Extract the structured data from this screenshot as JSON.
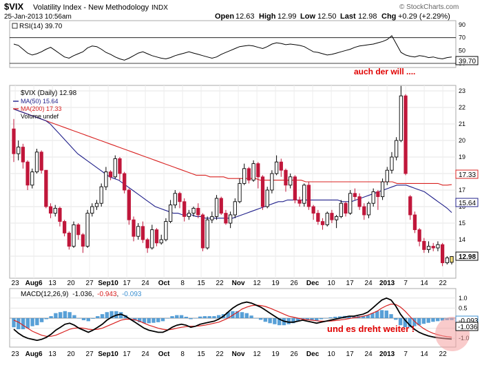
{
  "header": {
    "symbol": "$VIX",
    "name": "Volatility Index - New Methodology",
    "exchange": "INDX",
    "date": "25-Jan-2013 10:56am",
    "quote": {
      "open_label": "Open",
      "open": "12.63",
      "high_label": "High",
      "high": "12.99",
      "low_label": "Low",
      "low": "12.50",
      "last_label": "Last",
      "last": "12.98",
      "chg_label": "Chg",
      "chg": "+0.29 (+2.29%)"
    },
    "credit": "© StockCharts.com"
  },
  "x_axis_labels": [
    "23",
    "Aug6",
    "13",
    "20",
    "27",
    "Sep10",
    "17",
    "24",
    "Oct",
    "8",
    "15",
    "22",
    "Nov",
    "12",
    "19",
    "26",
    "Dec",
    "10",
    "17",
    "24",
    "2013",
    "7",
    "14",
    "22"
  ],
  "rsi_panel": {
    "legend": "RSI(14) 39.70",
    "last_badge": "39.70",
    "annotation": "auch der will ...."
  },
  "price_panel": {
    "legend": {
      "symbol": "$VIX (Daily) 12.98",
      "ma50": "MA(50) 15.64",
      "ma200": "MA(200) 17.33",
      "volume": "Volume undef"
    },
    "badges": {
      "last": "12.98",
      "ma200": "17.33",
      "ma50": "15.64"
    }
  },
  "macd_panel": {
    "legend_prefix": "MACD(12,26,9)",
    "legend_macd": "-1.036",
    "legend_signal": "-0.943",
    "legend_hist": "-0.093",
    "badges": {
      "hist": "-0.093",
      "macd": "-1.036"
    },
    "annotation": "und es dreht weiter !"
  },
  "colors": {
    "up": "#000000",
    "down": "#c0173b",
    "ma50": "#1f1f8a",
    "ma200": "#d8201f",
    "rsi": "#000000",
    "macd": "#000000",
    "signal": "#d8201f",
    "hist": "#3b8fd0",
    "annotation": "#e00000",
    "circle": "#f4a0a0"
  },
  "chart_data": [
    {
      "type": "line",
      "title": "RSI(14)",
      "ylim": [
        30,
        90
      ],
      "y_ticks": [
        30,
        50,
        70,
        90
      ],
      "reference_lines": [
        30,
        70
      ],
      "series": [
        {
          "name": "RSI(14)",
          "values": [
            60,
            58,
            52,
            46,
            43,
            45,
            48,
            52,
            55,
            50,
            45,
            40,
            38,
            42,
            45,
            48,
            54,
            57,
            56,
            52,
            47,
            44,
            40,
            37,
            35,
            38,
            42,
            46,
            48,
            45,
            42,
            40,
            38,
            37,
            39,
            42,
            44,
            46,
            48,
            46,
            44,
            42,
            40,
            38,
            40,
            44,
            47,
            50,
            53,
            56,
            57,
            58,
            57,
            55,
            53,
            56,
            60,
            62,
            61,
            59,
            60,
            59,
            58,
            56,
            52,
            48,
            47,
            45,
            43,
            44,
            46,
            48,
            50,
            52,
            55,
            57,
            58,
            59,
            60,
            62,
            64,
            67,
            73,
            60,
            47,
            43,
            41,
            40,
            42,
            41,
            39,
            40,
            38,
            37,
            39,
            40
          ]
        }
      ],
      "last_value": 39.7
    },
    {
      "type": "candlestick",
      "title": "$VIX (Daily)",
      "ylim": [
        12,
        23
      ],
      "y_ticks": [
        13,
        14,
        15,
        16,
        17,
        18,
        19,
        20,
        21,
        22,
        23
      ],
      "candles": [
        [
          20.7,
          19.2,
          21.3,
          18.7
        ],
        [
          19.2,
          19.6,
          20.0,
          18.8
        ],
        [
          19.6,
          18.7,
          19.8,
          18.3
        ],
        [
          18.7,
          17.3,
          18.8,
          17.0
        ],
        [
          17.3,
          18.1,
          18.3,
          17.1
        ],
        [
          18.1,
          19.3,
          19.5,
          18.0
        ],
        [
          19.3,
          18.2,
          19.4,
          18.0
        ],
        [
          18.2,
          16.0,
          18.2,
          15.9
        ],
        [
          16.0,
          15.6,
          16.2,
          15.3
        ],
        [
          15.6,
          15.9,
          16.1,
          15.4
        ],
        [
          15.9,
          15.1,
          16.0,
          14.8
        ],
        [
          15.1,
          14.4,
          15.2,
          14.2
        ],
        [
          14.4,
          13.6,
          14.5,
          13.4
        ],
        [
          13.6,
          14.9,
          15.1,
          13.5
        ],
        [
          14.9,
          14.3,
          15.0,
          14.0
        ],
        [
          14.3,
          13.6,
          14.4,
          13.2
        ],
        [
          13.6,
          15.6,
          15.8,
          13.5
        ],
        [
          15.6,
          16.0,
          16.2,
          15.4
        ],
        [
          16.0,
          16.2,
          16.4,
          15.8
        ],
        [
          16.2,
          17.2,
          17.4,
          16.0
        ],
        [
          17.2,
          18.1,
          18.4,
          17.0
        ],
        [
          18.1,
          17.8,
          18.2,
          17.6
        ],
        [
          17.8,
          18.9,
          19.1,
          17.7
        ],
        [
          18.9,
          18.0,
          19.0,
          17.6
        ],
        [
          18.0,
          17.0,
          18.1,
          16.8
        ],
        [
          17.0,
          15.2,
          17.1,
          14.9
        ],
        [
          15.2,
          14.2,
          15.4,
          13.9
        ],
        [
          14.2,
          14.8,
          15.0,
          14.0
        ],
        [
          14.8,
          14.0,
          15.1,
          13.8
        ],
        [
          14.0,
          13.5,
          14.1,
          13.2
        ],
        [
          13.5,
          14.6,
          14.9,
          13.4
        ],
        [
          14.6,
          13.8,
          14.7,
          13.6
        ],
        [
          13.8,
          14.0,
          14.3,
          13.7
        ],
        [
          14.0,
          15.1,
          15.3,
          13.9
        ],
        [
          15.1,
          16.1,
          16.4,
          15.0
        ],
        [
          16.1,
          16.8,
          17.0,
          15.9
        ],
        [
          16.8,
          16.3,
          16.9,
          15.9
        ],
        [
          16.3,
          15.4,
          16.5,
          15.1
        ],
        [
          15.4,
          15.6,
          15.8,
          15.2
        ],
        [
          15.6,
          15.9,
          16.0,
          15.4
        ],
        [
          15.9,
          15.5,
          16.2,
          15.3
        ],
        [
          15.5,
          13.5,
          15.6,
          13.3
        ],
        [
          13.5,
          15.2,
          15.4,
          13.4
        ],
        [
          15.2,
          15.4,
          15.7,
          15.0
        ],
        [
          15.4,
          16.5,
          16.7,
          15.2
        ],
        [
          16.5,
          15.6,
          16.6,
          15.5
        ],
        [
          15.6,
          15.0,
          15.8,
          14.9
        ],
        [
          15.0,
          15.5,
          15.7,
          14.7
        ],
        [
          15.5,
          16.3,
          16.5,
          15.3
        ],
        [
          16.3,
          17.4,
          17.7,
          16.2
        ],
        [
          17.4,
          18.3,
          18.6,
          17.3
        ],
        [
          18.3,
          17.6,
          18.4,
          17.4
        ],
        [
          17.6,
          18.6,
          18.8,
          17.5
        ],
        [
          18.6,
          17.8,
          18.7,
          17.1
        ],
        [
          17.8,
          16.0,
          17.9,
          15.8
        ],
        [
          16.0,
          17.0,
          17.2,
          15.9
        ],
        [
          17.0,
          18.0,
          18.2,
          16.8
        ],
        [
          18.0,
          18.7,
          19.1,
          17.9
        ],
        [
          18.7,
          18.2,
          18.9,
          17.8
        ],
        [
          18.2,
          17.3,
          18.3,
          16.9
        ],
        [
          17.3,
          17.8,
          18.0,
          17.1
        ],
        [
          17.8,
          16.4,
          17.9,
          16.2
        ],
        [
          16.4,
          16.2,
          16.6,
          16.0
        ],
        [
          16.2,
          17.3,
          17.4,
          16.0
        ],
        [
          17.3,
          16.0,
          17.5,
          15.8
        ],
        [
          16.0,
          15.6,
          16.1,
          15.2
        ],
        [
          15.6,
          15.1,
          15.8,
          14.9
        ],
        [
          15.1,
          14.9,
          15.3,
          14.6
        ],
        [
          14.9,
          15.6,
          15.7,
          14.8
        ],
        [
          15.6,
          15.2,
          15.8,
          15.0
        ],
        [
          15.2,
          15.4,
          15.5,
          14.7
        ],
        [
          15.4,
          16.2,
          16.4,
          15.3
        ],
        [
          16.2,
          15.6,
          16.3,
          15.4
        ],
        [
          15.6,
          16.8,
          17.0,
          15.5
        ],
        [
          16.8,
          16.6,
          17.1,
          16.4
        ],
        [
          16.6,
          16.0,
          16.8,
          15.8
        ],
        [
          16.0,
          15.5,
          16.2,
          15.2
        ],
        [
          15.5,
          16.2,
          16.3,
          15.3
        ],
        [
          16.2,
          16.9,
          17.1,
          16.0
        ],
        [
          16.9,
          16.6,
          17.0,
          15.8
        ],
        [
          16.6,
          17.5,
          17.7,
          16.4
        ],
        [
          17.5,
          18.2,
          18.4,
          17.3
        ],
        [
          18.2,
          19.0,
          19.3,
          18.0
        ],
        [
          19.0,
          20.0,
          20.2,
          18.8
        ],
        [
          20.0,
          22.7,
          23.3,
          19.9
        ],
        [
          22.7,
          18.0,
          22.8,
          17.9
        ],
        [
          16.6,
          15.5,
          16.7,
          15.2
        ],
        [
          15.5,
          14.6,
          15.7,
          14.4
        ],
        [
          14.6,
          13.9,
          14.7,
          13.6
        ],
        [
          13.9,
          13.4,
          14.1,
          13.2
        ],
        [
          13.4,
          13.6,
          13.9,
          13.2
        ],
        [
          13.6,
          13.5,
          13.8,
          13.3
        ],
        [
          13.5,
          13.7,
          13.9,
          13.3
        ],
        [
          13.7,
          12.6,
          13.8,
          12.4
        ],
        [
          12.6,
          12.9,
          13.0,
          12.5
        ],
        [
          12.63,
          12.98,
          12.99,
          12.5
        ]
      ],
      "ma50": [
        21.9,
        21.8,
        21.7,
        21.6,
        21.5,
        21.4,
        21.3,
        21.2,
        21.0,
        20.7,
        20.4,
        20.1,
        19.8,
        19.5,
        19.2,
        19.0,
        18.8,
        18.6,
        18.4,
        18.2,
        18.0,
        17.8,
        17.7,
        17.6,
        17.4,
        17.2,
        17.0,
        16.8,
        16.6,
        16.4,
        16.2,
        16.0,
        15.9,
        15.8,
        15.7,
        15.6,
        15.6,
        15.5,
        15.5,
        15.5,
        15.4,
        15.4,
        15.3,
        15.3,
        15.3,
        15.3,
        15.3,
        15.3,
        15.3,
        15.4,
        15.5,
        15.6,
        15.7,
        15.8,
        15.9,
        16.0,
        16.1,
        16.2,
        16.3,
        16.3,
        16.4,
        16.4,
        16.4,
        16.4,
        16.4,
        16.4,
        16.4,
        16.4,
        16.4,
        16.4,
        16.4,
        16.4,
        16.3,
        16.3,
        16.3,
        16.4,
        16.5,
        16.6,
        16.7,
        16.8,
        16.9,
        17.0,
        17.1,
        17.2,
        17.3,
        17.3,
        17.3,
        17.2,
        17.1,
        17.0,
        16.9,
        16.7,
        16.5,
        16.3,
        16.1,
        15.9,
        15.64
      ],
      "ma200": [
        21.9,
        21.8,
        21.7,
        21.6,
        21.5,
        21.4,
        21.3,
        21.2,
        21.1,
        21.0,
        20.9,
        20.8,
        20.7,
        20.6,
        20.5,
        20.4,
        20.3,
        20.2,
        20.1,
        20.0,
        19.9,
        19.8,
        19.7,
        19.6,
        19.5,
        19.4,
        19.3,
        19.2,
        19.1,
        19.0,
        18.9,
        18.8,
        18.7,
        18.6,
        18.5,
        18.4,
        18.3,
        18.2,
        18.1,
        18.0,
        17.9,
        17.9,
        17.9,
        17.8,
        17.8,
        17.8,
        17.8,
        17.7,
        17.7,
        17.7,
        17.7,
        17.7,
        17.7,
        17.7,
        17.6,
        17.6,
        17.6,
        17.6,
        17.6,
        17.6,
        17.6,
        17.6,
        17.6,
        17.6,
        17.5,
        17.5,
        17.5,
        17.5,
        17.5,
        17.5,
        17.5,
        17.5,
        17.5,
        17.5,
        17.5,
        17.5,
        17.5,
        17.5,
        17.5,
        17.5,
        17.5,
        17.5,
        17.5,
        17.5,
        17.4,
        17.4,
        17.4,
        17.4,
        17.4,
        17.4,
        17.4,
        17.4,
        17.4,
        17.4,
        17.3,
        17.3,
        17.33
      ],
      "last_close": 12.98
    },
    {
      "type": "line",
      "title": "MACD(12,26,9)",
      "ylim": [
        -1.3,
        1.3
      ],
      "y_ticks": [
        -1.0,
        -0.5,
        0.0,
        0.5,
        1.0
      ],
      "series": [
        {
          "name": "MACD",
          "values": [
            -0.55,
            -0.75,
            -0.9,
            -1.0,
            -1.05,
            -1.1,
            -1.05,
            -0.95,
            -0.8,
            -0.6,
            -0.45,
            -0.3,
            -0.25,
            -0.35,
            -0.5,
            -0.6,
            -0.7,
            -0.6,
            -0.45,
            -0.3,
            -0.1,
            0.05,
            0.15,
            0.2,
            0.1,
            -0.05,
            -0.2,
            -0.35,
            -0.5,
            -0.6,
            -0.65,
            -0.7,
            -0.7,
            -0.6,
            -0.45,
            -0.35,
            -0.3,
            -0.35,
            -0.45,
            -0.4,
            -0.3,
            -0.25,
            -0.2,
            -0.15,
            -0.05,
            0.1,
            0.3,
            0.5,
            0.65,
            0.75,
            0.8,
            0.75,
            0.65,
            0.55,
            0.4,
            0.25,
            0.1,
            -0.05,
            -0.15,
            -0.2,
            -0.2,
            -0.15,
            -0.1,
            -0.15,
            -0.2,
            -0.25,
            -0.2,
            -0.15,
            -0.1,
            -0.05,
            0.0,
            0.05,
            0.1,
            0.1,
            0.15,
            0.2,
            0.3,
            0.5,
            0.7,
            0.9,
            1.0,
            0.9,
            0.6,
            0.2,
            -0.1,
            -0.35,
            -0.55,
            -0.7,
            -0.8,
            -0.88,
            -0.93,
            -0.97,
            -1.0,
            -1.02,
            -1.036
          ]
        },
        {
          "name": "Signal",
          "values": [
            -0.1,
            -0.2,
            -0.35,
            -0.5,
            -0.65,
            -0.75,
            -0.85,
            -0.9,
            -0.9,
            -0.85,
            -0.75,
            -0.65,
            -0.55,
            -0.5,
            -0.48,
            -0.5,
            -0.55,
            -0.57,
            -0.55,
            -0.5,
            -0.4,
            -0.3,
            -0.2,
            -0.1,
            -0.05,
            -0.05,
            -0.08,
            -0.15,
            -0.25,
            -0.35,
            -0.42,
            -0.5,
            -0.55,
            -0.58,
            -0.55,
            -0.5,
            -0.45,
            -0.42,
            -0.4,
            -0.4,
            -0.38,
            -0.35,
            -0.3,
            -0.25,
            -0.2,
            -0.1,
            0.0,
            0.15,
            0.3,
            0.45,
            0.55,
            0.62,
            0.65,
            0.63,
            0.58,
            0.5,
            0.4,
            0.3,
            0.2,
            0.1,
            0.05,
            0.0,
            -0.05,
            -0.08,
            -0.1,
            -0.13,
            -0.15,
            -0.15,
            -0.14,
            -0.12,
            -0.09,
            -0.06,
            -0.02,
            0.02,
            0.05,
            0.1,
            0.15,
            0.25,
            0.35,
            0.5,
            0.62,
            0.7,
            0.68,
            0.55,
            0.35,
            0.1,
            -0.15,
            -0.35,
            -0.52,
            -0.65,
            -0.75,
            -0.82,
            -0.88,
            -0.92,
            -0.943
          ]
        }
      ],
      "histogram_last": -0.093
    }
  ]
}
